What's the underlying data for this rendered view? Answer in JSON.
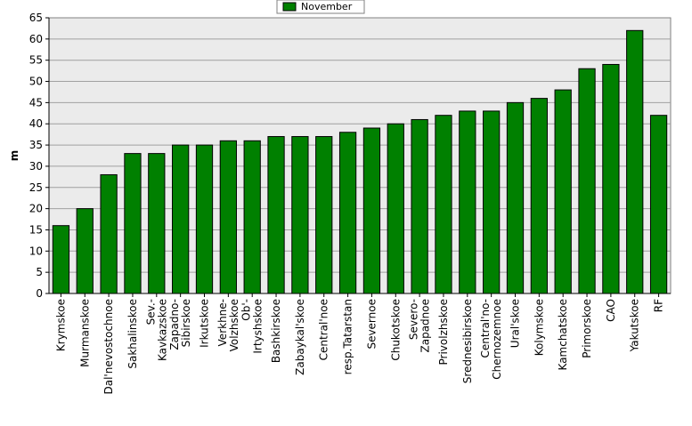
{
  "chart_data": {
    "type": "bar",
    "ylabel": "m",
    "ylim": [
      0,
      65
    ],
    "ytick_step": 5,
    "grid": true,
    "legend_position": "top-center",
    "series": [
      {
        "name": "November",
        "color": "#008000",
        "values": [
          16,
          20,
          28,
          33,
          33,
          35,
          35,
          36,
          36,
          37,
          37,
          37,
          38,
          39,
          40,
          41,
          42,
          43,
          43,
          45,
          46,
          48,
          53,
          54,
          62,
          42
        ]
      }
    ],
    "categories": [
      [
        "Krymskoe"
      ],
      [
        "Murmanskoe"
      ],
      [
        "Dal'nevostochnoe"
      ],
      [
        "Sakhalinskoe"
      ],
      [
        "Sev.-",
        "Kavkazskoe"
      ],
      [
        "Zapadno-",
        "Sibirskoe"
      ],
      [
        "Irkutskoe"
      ],
      [
        "Verkhne-",
        "Volzhskoe"
      ],
      [
        "Ob'-",
        "Irtyshskoe"
      ],
      [
        "Bashkirskoe"
      ],
      [
        "Zabaykal'skoe"
      ],
      [
        "Central'noe"
      ],
      [
        "resp.Tatarstan"
      ],
      [
        "Severnoe"
      ],
      [
        "Chukotskoe"
      ],
      [
        "Severo-",
        "Zapadnoe"
      ],
      [
        "Privolzhskoe"
      ],
      [
        "Srednesibirskoe"
      ],
      [
        "Central'no-",
        "Chernozemnoe"
      ],
      [
        "Ural'skoe"
      ],
      [
        "Kolymskoe"
      ],
      [
        "Kamchatskoe"
      ],
      [
        "Primorskoe"
      ],
      [
        "CAO"
      ],
      [
        "Yakutskoe"
      ],
      [
        "RF"
      ]
    ]
  }
}
